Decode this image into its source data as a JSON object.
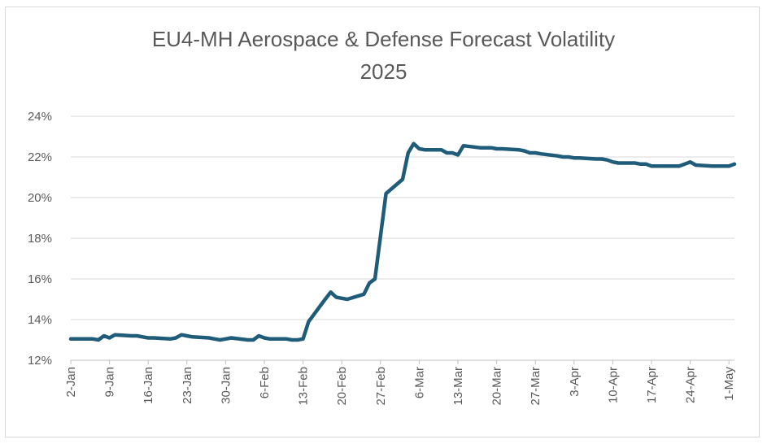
{
  "chart_data": {
    "type": "line",
    "title": "EU4-MH Aerospace & Defense Forecast Volatility",
    "subtitle": "2025",
    "xlabel": "",
    "ylabel": "",
    "ylim": [
      0.12,
      0.24
    ],
    "yticks": [
      "24%",
      "22%",
      "20%",
      "18%",
      "16%",
      "14%",
      "12%"
    ],
    "ytick_values": [
      0.24,
      0.22,
      0.2,
      0.18,
      0.16,
      0.14,
      0.12
    ],
    "xticks": [
      "2-Jan",
      "9-Jan",
      "16-Jan",
      "23-Jan",
      "30-Jan",
      "6-Feb",
      "13-Feb",
      "20-Feb",
      "27-Feb",
      "6-Mar",
      "13-Mar",
      "20-Mar",
      "27-Mar",
      "3-Apr",
      "10-Apr",
      "17-Apr",
      "24-Apr",
      "1-May"
    ],
    "xtick_dates": [
      "2025-01-02",
      "2025-01-09",
      "2025-01-16",
      "2025-01-23",
      "2025-01-30",
      "2025-02-06",
      "2025-02-13",
      "2025-02-20",
      "2025-02-27",
      "2025-03-06",
      "2025-03-13",
      "2025-03-20",
      "2025-03-27",
      "2025-04-03",
      "2025-04-10",
      "2025-04-17",
      "2025-04-24",
      "2025-05-01"
    ],
    "grid": true,
    "legend": "none",
    "line_color": "#1f5c7a",
    "series": [
      {
        "name": "",
        "x": [
          "2025-01-02",
          "2025-01-03",
          "2025-01-06",
          "2025-01-07",
          "2025-01-08",
          "2025-01-09",
          "2025-01-10",
          "2025-01-13",
          "2025-01-14",
          "2025-01-15",
          "2025-01-16",
          "2025-01-17",
          "2025-01-20",
          "2025-01-21",
          "2025-01-22",
          "2025-01-23",
          "2025-01-24",
          "2025-01-27",
          "2025-01-28",
          "2025-01-29",
          "2025-01-30",
          "2025-01-31",
          "2025-02-03",
          "2025-02-04",
          "2025-02-05",
          "2025-02-06",
          "2025-02-07",
          "2025-02-10",
          "2025-02-11",
          "2025-02-12",
          "2025-02-13",
          "2025-02-14",
          "2025-02-17",
          "2025-02-18",
          "2025-02-19",
          "2025-02-20",
          "2025-02-21",
          "2025-02-24",
          "2025-02-25",
          "2025-02-26",
          "2025-02-27",
          "2025-02-28",
          "2025-03-03",
          "2025-03-04",
          "2025-03-05",
          "2025-03-06",
          "2025-03-07",
          "2025-03-10",
          "2025-03-11",
          "2025-03-12",
          "2025-03-13",
          "2025-03-14",
          "2025-03-17",
          "2025-03-18",
          "2025-03-19",
          "2025-03-20",
          "2025-03-21",
          "2025-03-24",
          "2025-03-25",
          "2025-03-26",
          "2025-03-27",
          "2025-03-28",
          "2025-03-31",
          "2025-04-01",
          "2025-04-02",
          "2025-04-03",
          "2025-04-04",
          "2025-04-07",
          "2025-04-08",
          "2025-04-09",
          "2025-04-10",
          "2025-04-11",
          "2025-04-14",
          "2025-04-15",
          "2025-04-16",
          "2025-04-17",
          "2025-04-18",
          "2025-04-21",
          "2025-04-22",
          "2025-04-23",
          "2025-04-24",
          "2025-04-25",
          "2025-04-28",
          "2025-04-29",
          "2025-04-30",
          "2025-05-01",
          "2025-05-02"
        ],
        "values": [
          0.1305,
          0.1305,
          0.1305,
          0.13,
          0.132,
          0.131,
          0.1325,
          0.132,
          0.132,
          0.1315,
          0.131,
          0.131,
          0.1305,
          0.131,
          0.1325,
          0.132,
          0.1315,
          0.131,
          0.1305,
          0.13,
          0.1305,
          0.131,
          0.13,
          0.13,
          0.132,
          0.131,
          0.1305,
          0.1305,
          0.13,
          0.13,
          0.1305,
          0.139,
          0.15,
          0.1535,
          0.151,
          0.1505,
          0.15,
          0.1525,
          0.158,
          0.16,
          0.181,
          0.202,
          0.209,
          0.222,
          0.2265,
          0.224,
          0.2235,
          0.2235,
          0.222,
          0.222,
          0.221,
          0.2255,
          0.2245,
          0.2245,
          0.2245,
          0.224,
          0.224,
          0.2235,
          0.223,
          0.222,
          0.222,
          0.2215,
          0.2205,
          0.22,
          0.22,
          0.2195,
          0.2195,
          0.219,
          0.219,
          0.2185,
          0.2175,
          0.217,
          0.217,
          0.2165,
          0.2165,
          0.2155,
          0.2155,
          0.2155,
          0.2155,
          0.2165,
          0.2175,
          0.216,
          0.2155,
          0.2155,
          0.2155,
          0.2155,
          0.2165
        ]
      }
    ]
  }
}
